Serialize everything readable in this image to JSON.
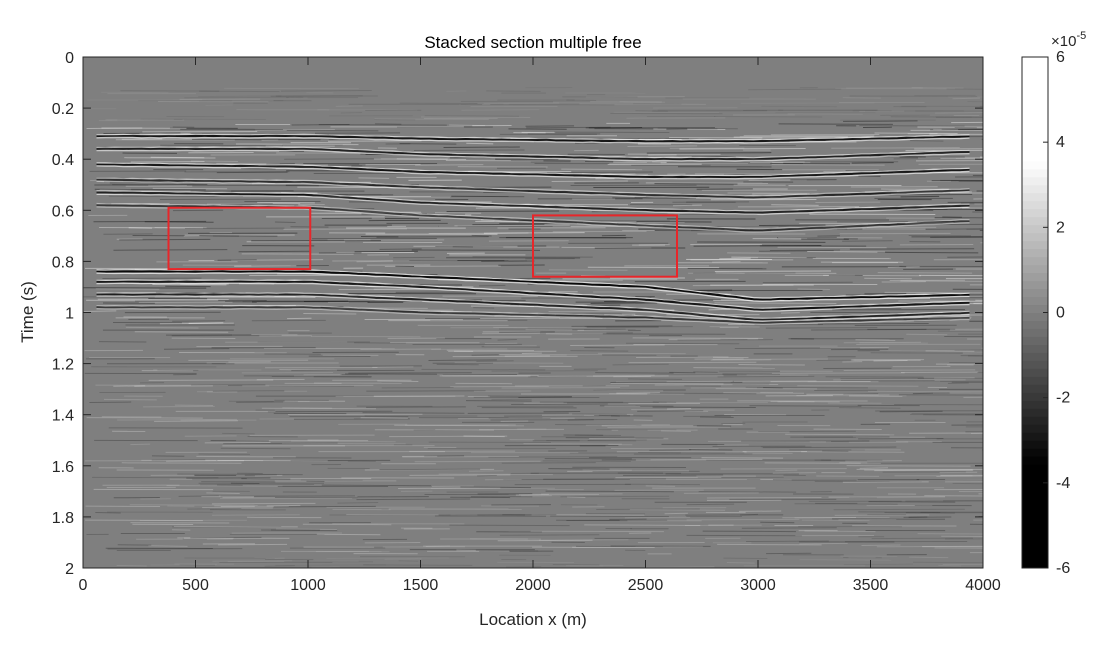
{
  "chart_data": {
    "type": "heatmap",
    "title": "Stacked section multiple free",
    "xlabel": "Location x (m)",
    "ylabel": "Time (s)",
    "xlim": [
      0,
      4000
    ],
    "ylim": [
      0,
      2
    ],
    "y_reversed": true,
    "x_ticks": [
      0,
      500,
      1000,
      1500,
      2000,
      2500,
      3000,
      3500,
      4000
    ],
    "x_tick_labels": [
      "0",
      "500",
      "1000",
      "1500",
      "2000",
      "2500",
      "3000",
      "3500",
      "4000"
    ],
    "y_ticks": [
      0,
      0.2,
      0.4,
      0.6,
      0.8,
      1.0,
      1.2,
      1.4,
      1.6,
      1.8,
      2.0
    ],
    "y_tick_labels": [
      "0",
      "0.2",
      "0.4",
      "0.6",
      "0.8",
      "1",
      "1.2",
      "1.4",
      "1.6",
      "1.8",
      "2"
    ],
    "colormap": "gray",
    "colorbar": {
      "range": [
        -6,
        6
      ],
      "ticks": [
        -6,
        -4,
        -2,
        0,
        2,
        4,
        6
      ],
      "tick_labels": [
        "-6",
        "-4",
        "-2",
        "0",
        "2",
        "4",
        "6"
      ],
      "exponent_base": "×10",
      "exponent_power": "-5"
    },
    "reflectors": [
      {
        "x": [
          0,
          1000,
          1500,
          2500,
          3000,
          4000
        ],
        "t": [
          0.31,
          0.31,
          0.32,
          0.33,
          0.33,
          0.31
        ],
        "strength": 0.9
      },
      {
        "x": [
          0,
          1000,
          1500,
          2500,
          3000,
          4000
        ],
        "t": [
          0.36,
          0.36,
          0.38,
          0.4,
          0.4,
          0.37
        ],
        "strength": 0.8
      },
      {
        "x": [
          0,
          1000,
          1500,
          2500,
          3000,
          4000
        ],
        "t": [
          0.42,
          0.43,
          0.45,
          0.47,
          0.47,
          0.44
        ],
        "strength": 0.9
      },
      {
        "x": [
          0,
          1000,
          1500,
          2500,
          3000,
          4000
        ],
        "t": [
          0.48,
          0.49,
          0.51,
          0.54,
          0.55,
          0.52
        ],
        "strength": 0.7
      },
      {
        "x": [
          0,
          1000,
          1500,
          2500,
          3000,
          4000
        ],
        "t": [
          0.53,
          0.54,
          0.57,
          0.6,
          0.61,
          0.58
        ],
        "strength": 0.8
      },
      {
        "x": [
          0,
          1000,
          1500,
          2500,
          3000,
          4000
        ],
        "t": [
          0.58,
          0.59,
          0.62,
          0.66,
          0.68,
          0.64
        ],
        "strength": 0.6
      },
      {
        "x": [
          0,
          1000,
          1500,
          2500,
          3000,
          4000
        ],
        "t": [
          0.84,
          0.84,
          0.86,
          0.9,
          0.95,
          0.93
        ],
        "strength": 1.0
      },
      {
        "x": [
          0,
          1000,
          1500,
          2500,
          3000,
          4000
        ],
        "t": [
          0.88,
          0.88,
          0.9,
          0.95,
          0.99,
          0.96
        ],
        "strength": 0.9
      },
      {
        "x": [
          0,
          1000,
          1500,
          2500,
          3000,
          4000
        ],
        "t": [
          0.93,
          0.93,
          0.95,
          0.99,
          1.03,
          1.0
        ],
        "strength": 0.8
      },
      {
        "x": [
          0,
          1000,
          1500,
          2500,
          3000,
          4000
        ],
        "t": [
          0.98,
          0.98,
          1.0,
          1.02,
          1.04,
          1.02
        ],
        "strength": 0.6
      }
    ],
    "annotations": [
      {
        "type": "rectangle",
        "color": "#e8262a",
        "x": [
          380,
          1010
        ],
        "t": [
          0.59,
          0.83
        ]
      },
      {
        "type": "rectangle",
        "color": "#e8262a",
        "x": [
          2000,
          2640
        ],
        "t": [
          0.62,
          0.86
        ]
      }
    ]
  }
}
